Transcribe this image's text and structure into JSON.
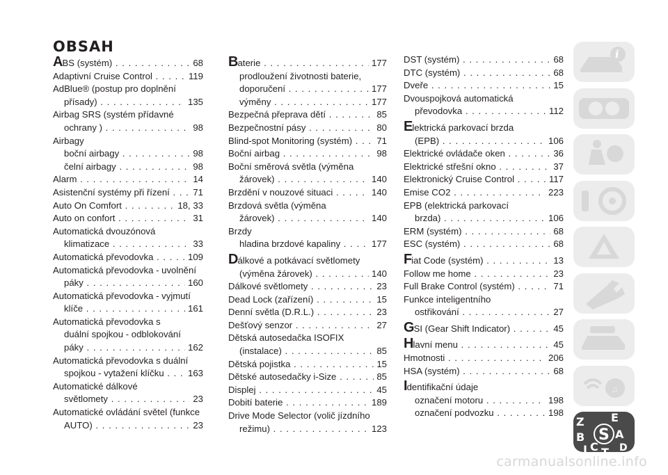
{
  "title": "OBSAH",
  "col1": [
    {
      "cap": "A",
      "text": "BS (systém)",
      "page": "68"
    },
    {
      "text": "Adaptivní Cruise Control",
      "page": "119"
    },
    {
      "text": "AdBlue® (postup pro doplnění",
      "cont": "přísady)",
      "page": "135"
    },
    {
      "text": "Airbag SRS (systém přídavné",
      "cont": "ochrany )",
      "page": "98"
    },
    {
      "text": "Airbagy"
    },
    {
      "sub": "boční airbagy",
      "page": "98"
    },
    {
      "sub": "čelní airbagy",
      "page": "98"
    },
    {
      "text": "Alarm",
      "page": "14"
    },
    {
      "text": "Asistenční systémy při řízení",
      "page": "71"
    },
    {
      "text": "Auto On Comfort",
      "page": "18, 33"
    },
    {
      "text": "Auto on confort",
      "page": "31"
    },
    {
      "text": "Automatická dvouzónová",
      "cont": "klimatizace",
      "page": "33"
    },
    {
      "text": "Automatická převodovka",
      "page": "109"
    },
    {
      "text": "Automatická převodovka - uvolnění",
      "cont": "páky",
      "page": "160"
    },
    {
      "text": "Automatická převodovka - vyjmutí",
      "cont": "klíče",
      "page": "161"
    },
    {
      "text": "Automatická převodovka s",
      "cont2": "duální spojkou - odblokování",
      "cont": "páky",
      "page": "162"
    },
    {
      "text": "Automatická převodovka s duální",
      "cont": "spojkou - vytažení klíčku",
      "page": "163"
    },
    {
      "text": "Automatické dálkové",
      "cont": "světlomety",
      "page": "23"
    },
    {
      "text": "Automatické ovládání světel (funkce",
      "cont": "AUTO)",
      "page": "23"
    }
  ],
  "col2": [
    {
      "cap": "B",
      "text": "aterie",
      "page": "177"
    },
    {
      "sub2": "prodloužení životnosti baterie,",
      "cont": "doporučení",
      "page": "177",
      "indentcont": true
    },
    {
      "sub": "výměny",
      "page": "177"
    },
    {
      "text": "Bezpečná přeprava dětí",
      "page": "85"
    },
    {
      "text": "Bezpečnostní pásy",
      "page": "80"
    },
    {
      "text": "Blind-spot Monitoring (systém)",
      "page": "71"
    },
    {
      "text": "Boční airbag",
      "page": "98"
    },
    {
      "text": "Boční směrová světla (výměna",
      "cont": "žárovek)",
      "page": "140"
    },
    {
      "text": "Brzdění v nouzové situaci",
      "page": "140"
    },
    {
      "text": "Brzdová světla (výměna",
      "cont": "žárovek)",
      "page": "140"
    },
    {
      "text": "Brzdy"
    },
    {
      "sub": "hladina brzdové kapaliny",
      "page": "177"
    },
    {
      "cap": "D",
      "text": "álkové a potkávací světlomety",
      "cont": "(výměna žárovek)",
      "page": "140"
    },
    {
      "text": "Dálkové světlomety",
      "page": "23"
    },
    {
      "text": "Dead Lock (zařízení)",
      "page": "15"
    },
    {
      "text": "Denní světla (D.R.L.)",
      "page": "23"
    },
    {
      "text": "Dešťový senzor",
      "page": "27"
    },
    {
      "text": "Dětská autosedačka ISOFIX",
      "cont": "(instalace)",
      "page": "85"
    },
    {
      "text": "Dětská pojistka",
      "page": "15"
    },
    {
      "text": "Dětské autosedačky i-Size",
      "page": "85"
    },
    {
      "text": "Displej",
      "page": "45"
    },
    {
      "text": "Dobití baterie",
      "page": "189"
    },
    {
      "text": "Drive Mode Selector (volič jízdního",
      "cont": "režimu)",
      "page": "123"
    }
  ],
  "col3": [
    {
      "text": "DST (systém)",
      "page": "68"
    },
    {
      "text": "DTC (systém)",
      "page": "68"
    },
    {
      "text": "Dveře",
      "page": "15"
    },
    {
      "text": "Dvouspojková automatická",
      "cont": "převodovka",
      "page": "112"
    },
    {
      "cap": "E",
      "text": "lektrická parkovací brzda",
      "cont": "(EPB)",
      "page": "106"
    },
    {
      "text": "Elektrické ovládače oken",
      "page": "36"
    },
    {
      "text": "Elektrické střešní okno",
      "page": "37"
    },
    {
      "text": "Elektronický Cruise Control",
      "page": "117"
    },
    {
      "text": "Emise CO2",
      "page": "223"
    },
    {
      "text": "EPB (elektrická parkovací",
      "cont": "brzda)",
      "page": "106"
    },
    {
      "text": "ERM (systém)",
      "page": "68"
    },
    {
      "text": "ESC (systém)",
      "page": "68"
    },
    {
      "cap": "F",
      "text": "iat Code (systém)",
      "page": "13"
    },
    {
      "text": "Follow me home",
      "page": "23"
    },
    {
      "text": "Full Brake Control (systém)",
      "page": "71"
    },
    {
      "text": "Funkce inteligentního",
      "cont": "ostřikování",
      "page": "27"
    },
    {
      "cap": "G",
      "text": "SI (Gear Shift Indicator)",
      "page": "45"
    },
    {
      "cap": "H",
      "text": "lavní menu",
      "page": "45"
    },
    {
      "text": "Hmotnosti",
      "page": "206"
    },
    {
      "text": "HSA (systém)",
      "page": "68"
    },
    {
      "cap": "I",
      "text": "dentifikační údaje"
    },
    {
      "sub": "označení motoru",
      "page": "198"
    },
    {
      "sub": "označení podvozku",
      "page": "198"
    }
  ],
  "sidebar": {
    "tabs": [
      "info-icon",
      "car-dashboard-icon",
      "airbag-seat-icon",
      "steering-wheel-icon",
      "warning-triangle-icon",
      "wrench-icon",
      "car-data-icon",
      "music-settings-icon",
      "index-icon"
    ],
    "index_letters": [
      "Z",
      "E",
      "B",
      "A",
      "I",
      "C",
      "T",
      "D"
    ],
    "active_color": "#4a4a4a",
    "tab_color": "#ececec"
  },
  "watermark": "carmanualsonline.info"
}
